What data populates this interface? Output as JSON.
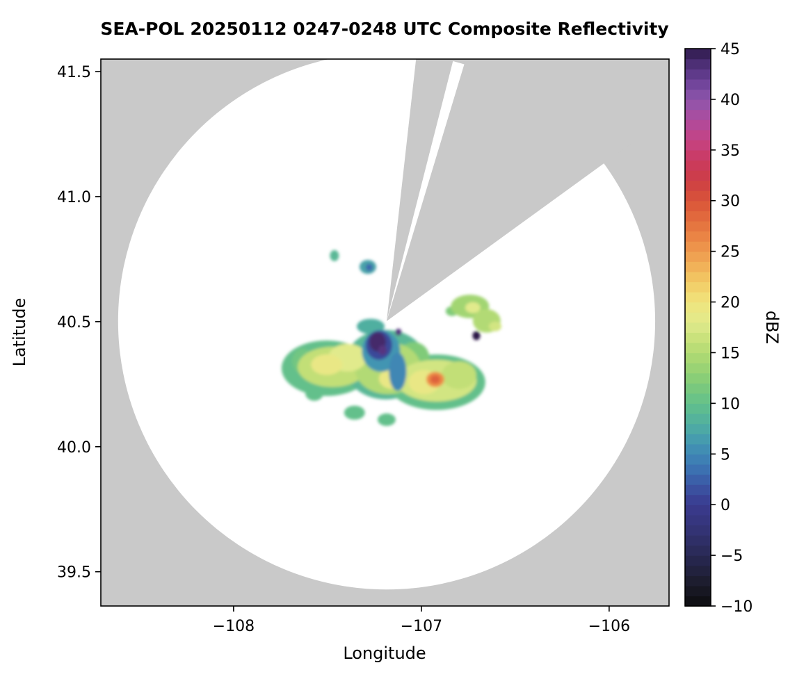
{
  "title": "SEA-POL 20250112 0247-0248 UTC Composite Reflectivity",
  "axes": {
    "xlabel": "Longitude",
    "ylabel": "Latitude",
    "xlim": [
      -108.707,
      -105.681
    ],
    "ylim": [
      39.363,
      41.55
    ],
    "xticks": [
      {
        "value": -108,
        "label": "−108"
      },
      {
        "value": -107,
        "label": "−107"
      },
      {
        "value": -106,
        "label": "−106"
      }
    ],
    "yticks": [
      {
        "value": 39.5,
        "label": "39.5"
      },
      {
        "value": 40.0,
        "label": "40.0"
      },
      {
        "value": 40.5,
        "label": "40.5"
      },
      {
        "value": 41.0,
        "label": "41.0"
      },
      {
        "value": 41.5,
        "label": "41.5"
      }
    ]
  },
  "colorbar": {
    "label": "dBZ",
    "min": -10,
    "max": 45,
    "ticks": [
      {
        "value": 45,
        "label": "45"
      },
      {
        "value": 40,
        "label": "40"
      },
      {
        "value": 35,
        "label": "35"
      },
      {
        "value": 30,
        "label": "30"
      },
      {
        "value": 25,
        "label": "25"
      },
      {
        "value": 20,
        "label": "20"
      },
      {
        "value": 15,
        "label": "15"
      },
      {
        "value": 10,
        "label": "10"
      },
      {
        "value": 5,
        "label": "5"
      },
      {
        "value": 0,
        "label": "0"
      },
      {
        "value": -5,
        "label": "−5"
      },
      {
        "value": -10,
        "label": "−10"
      }
    ],
    "colormap": [
      {
        "dbz": -10,
        "color": "#0d0d0f"
      },
      {
        "dbz": -8,
        "color": "#1a1a28"
      },
      {
        "dbz": -6,
        "color": "#242445"
      },
      {
        "dbz": -4,
        "color": "#2d2d61"
      },
      {
        "dbz": -2,
        "color": "#35357a"
      },
      {
        "dbz": 0,
        "color": "#3a3a8e"
      },
      {
        "dbz": 2,
        "color": "#3b57a5"
      },
      {
        "dbz": 4,
        "color": "#3c79b5"
      },
      {
        "dbz": 6,
        "color": "#4295b2"
      },
      {
        "dbz": 8,
        "color": "#50afa0"
      },
      {
        "dbz": 10,
        "color": "#63c08b"
      },
      {
        "dbz": 12,
        "color": "#80cb79"
      },
      {
        "dbz": 14,
        "color": "#a2d572"
      },
      {
        "dbz": 16,
        "color": "#c2df77"
      },
      {
        "dbz": 18,
        "color": "#e1ea8c"
      },
      {
        "dbz": 20,
        "color": "#f0e47d"
      },
      {
        "dbz": 22,
        "color": "#f2cb65"
      },
      {
        "dbz": 24,
        "color": "#f0aa55"
      },
      {
        "dbz": 26,
        "color": "#ec8b47"
      },
      {
        "dbz": 28,
        "color": "#e36f3e"
      },
      {
        "dbz": 30,
        "color": "#d95439"
      },
      {
        "dbz": 32,
        "color": "#cd3e45"
      },
      {
        "dbz": 34,
        "color": "#ca3a60"
      },
      {
        "dbz": 36,
        "color": "#c44384"
      },
      {
        "dbz": 38,
        "color": "#ae4b9d"
      },
      {
        "dbz": 40,
        "color": "#8e55ab"
      },
      {
        "dbz": 42,
        "color": "#684095"
      },
      {
        "dbz": 44,
        "color": "#44296a"
      },
      {
        "dbz": 45,
        "color": "#2c1947"
      }
    ]
  },
  "radar": {
    "masked_color": "#c9c9c9",
    "coverage_color": "#ffffff",
    "center_lon": -107.185,
    "center_lat": 40.502,
    "range_deg_lat": 1.073,
    "missing_sectors_deg": [
      [
        6.4,
        14.3
      ],
      [
        16.8,
        54.0
      ]
    ]
  },
  "chart_data": {
    "type": "heatmap",
    "title": "SEA-POL 20250112 0247-0248 UTC Composite Reflectivity",
    "xlabel": "Longitude",
    "ylabel": "Latitude",
    "colorbar_label": "dBZ",
    "clim": [
      -10,
      45
    ],
    "xlim": [
      -108.707,
      -105.681
    ],
    "ylim": [
      39.363,
      41.55
    ],
    "echoes": [
      {
        "lon": -107.504,
        "lat": 40.314,
        "w": 0.481,
        "h": 0.222,
        "dbz": 10
      },
      {
        "lon": -107.189,
        "lat": 40.328,
        "w": 0.444,
        "h": 0.278,
        "dbz": 9
      },
      {
        "lon": -106.919,
        "lat": 40.258,
        "w": 0.519,
        "h": 0.222,
        "dbz": 10
      },
      {
        "lon": -107.633,
        "lat": 40.342,
        "w": 0.111,
        "h": 0.1,
        "dbz": 11
      },
      {
        "lon": -107.57,
        "lat": 40.214,
        "w": 0.096,
        "h": 0.061,
        "dbz": 10
      },
      {
        "lon": -107.356,
        "lat": 40.136,
        "w": 0.111,
        "h": 0.056,
        "dbz": 10
      },
      {
        "lon": -107.185,
        "lat": 40.108,
        "w": 0.096,
        "h": 0.05,
        "dbz": 10
      },
      {
        "lon": -107.27,
        "lat": 40.481,
        "w": 0.148,
        "h": 0.061,
        "dbz": 8
      },
      {
        "lon": -107.041,
        "lat": 40.356,
        "w": 0.167,
        "h": 0.125,
        "dbz": 12
      },
      {
        "lon": -107.474,
        "lat": 40.319,
        "w": 0.37,
        "h": 0.161,
        "dbz": 16
      },
      {
        "lon": -107.178,
        "lat": 40.314,
        "w": 0.352,
        "h": 0.208,
        "dbz": 15
      },
      {
        "lon": -106.919,
        "lat": 40.264,
        "w": 0.426,
        "h": 0.167,
        "dbz": 17
      },
      {
        "lon": -107.393,
        "lat": 40.356,
        "w": 0.204,
        "h": 0.111,
        "dbz": 18
      },
      {
        "lon": -106.8,
        "lat": 40.286,
        "w": 0.185,
        "h": 0.111,
        "dbz": 16
      },
      {
        "lon": -107.504,
        "lat": 40.328,
        "w": 0.167,
        "h": 0.083,
        "dbz": 19
      },
      {
        "lon": -106.985,
        "lat": 40.258,
        "w": 0.167,
        "h": 0.097,
        "dbz": 19
      },
      {
        "lon": -107.152,
        "lat": 40.272,
        "w": 0.148,
        "h": 0.083,
        "dbz": 19
      },
      {
        "lon": -106.926,
        "lat": 40.269,
        "w": 0.096,
        "h": 0.061,
        "dbz": 26
      },
      {
        "lon": -106.926,
        "lat": 40.269,
        "w": 0.052,
        "h": 0.033,
        "dbz": 29
      },
      {
        "lon": -107.215,
        "lat": 40.383,
        "w": 0.204,
        "h": 0.167,
        "dbz": 6
      },
      {
        "lon": -107.126,
        "lat": 40.3,
        "w": 0.093,
        "h": 0.153,
        "dbz": 5
      },
      {
        "lon": -107.226,
        "lat": 40.406,
        "w": 0.141,
        "h": 0.117,
        "dbz": 1
      },
      {
        "lon": -107.233,
        "lat": 40.419,
        "w": 0.089,
        "h": 0.078,
        "dbz": 44
      },
      {
        "lon": -107.207,
        "lat": 40.386,
        "w": 0.044,
        "h": 0.039,
        "dbz": 43
      },
      {
        "lon": -107.122,
        "lat": 40.458,
        "w": 0.033,
        "h": 0.028,
        "dbz": 43
      },
      {
        "lon": -106.707,
        "lat": 40.444,
        "w": 0.041,
        "h": 0.036,
        "dbz": 45
      },
      {
        "lon": -107.463,
        "lat": 40.764,
        "w": 0.048,
        "h": 0.044,
        "dbz": 9
      },
      {
        "lon": -107.285,
        "lat": 40.719,
        "w": 0.089,
        "h": 0.056,
        "dbz": 7
      },
      {
        "lon": -107.278,
        "lat": 40.717,
        "w": 0.037,
        "h": 0.028,
        "dbz": 3
      },
      {
        "lon": -106.837,
        "lat": 40.542,
        "w": 0.067,
        "h": 0.039,
        "dbz": 12
      },
      {
        "lon": -106.741,
        "lat": 40.561,
        "w": 0.204,
        "h": 0.094,
        "dbz": 14
      },
      {
        "lon": -106.652,
        "lat": 40.503,
        "w": 0.148,
        "h": 0.094,
        "dbz": 15
      },
      {
        "lon": -106.726,
        "lat": 40.556,
        "w": 0.081,
        "h": 0.044,
        "dbz": 18
      },
      {
        "lon": -106.607,
        "lat": 40.481,
        "w": 0.067,
        "h": 0.039,
        "dbz": 17
      }
    ]
  }
}
